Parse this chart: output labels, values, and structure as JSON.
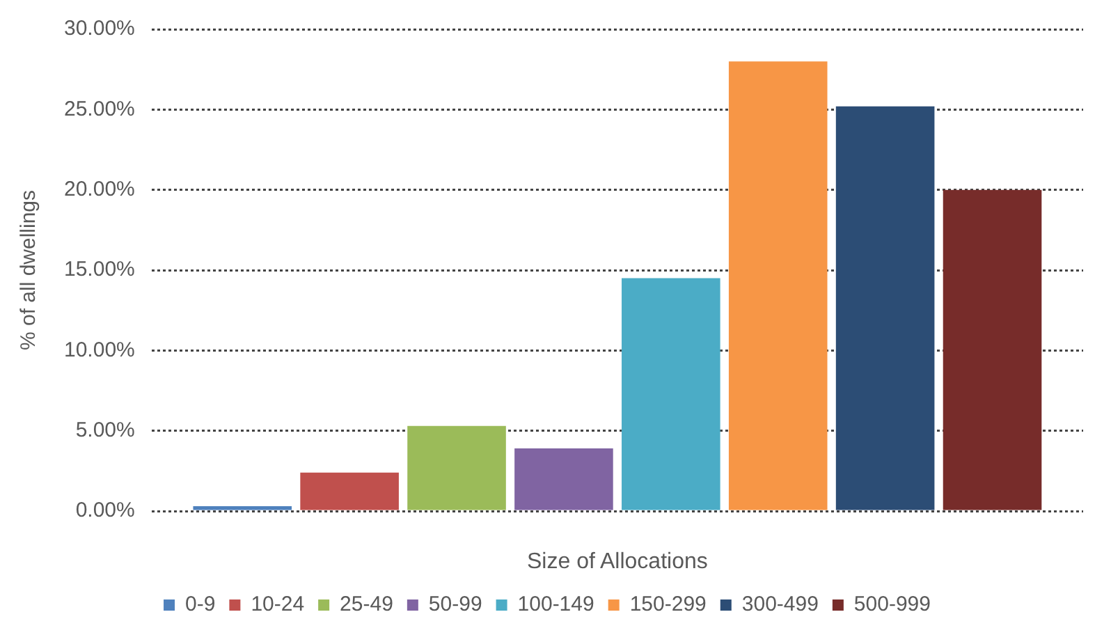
{
  "chart_data": {
    "type": "bar",
    "xlabel": "Size of Allocations",
    "ylabel": "% of all dwellings",
    "categories": [
      null
    ],
    "series": [
      {
        "name": "0-9",
        "color": "#4f81bd",
        "values": [
          0.3
        ]
      },
      {
        "name": "10-24",
        "color": "#c0504d",
        "values": [
          2.4
        ]
      },
      {
        "name": "25-49",
        "color": "#9bbb59",
        "values": [
          5.3
        ]
      },
      {
        "name": "50-99",
        "color": "#8064a2",
        "values": [
          3.9
        ]
      },
      {
        "name": "100-149",
        "color": "#4bacc6",
        "values": [
          14.5
        ]
      },
      {
        "name": "150-299",
        "color": "#f79646",
        "values": [
          28.0
        ]
      },
      {
        "name": "300-499",
        "color": "#2c4d75",
        "values": [
          25.2
        ]
      },
      {
        "name": "500-999",
        "color": "#772c2a",
        "values": [
          20.0
        ]
      }
    ],
    "ylim": [
      0,
      30
    ],
    "yticks": [
      {
        "value": 0,
        "label": "0.00%"
      },
      {
        "value": 5,
        "label": "5.00%"
      },
      {
        "value": 10,
        "label": "10.00%"
      },
      {
        "value": 15,
        "label": "15.00%"
      },
      {
        "value": 20,
        "label": "20.00%"
      },
      {
        "value": 25,
        "label": "25.00%"
      },
      {
        "value": 30,
        "label": "30.00%"
      }
    ],
    "grid": "y",
    "legend": "bottom"
  }
}
